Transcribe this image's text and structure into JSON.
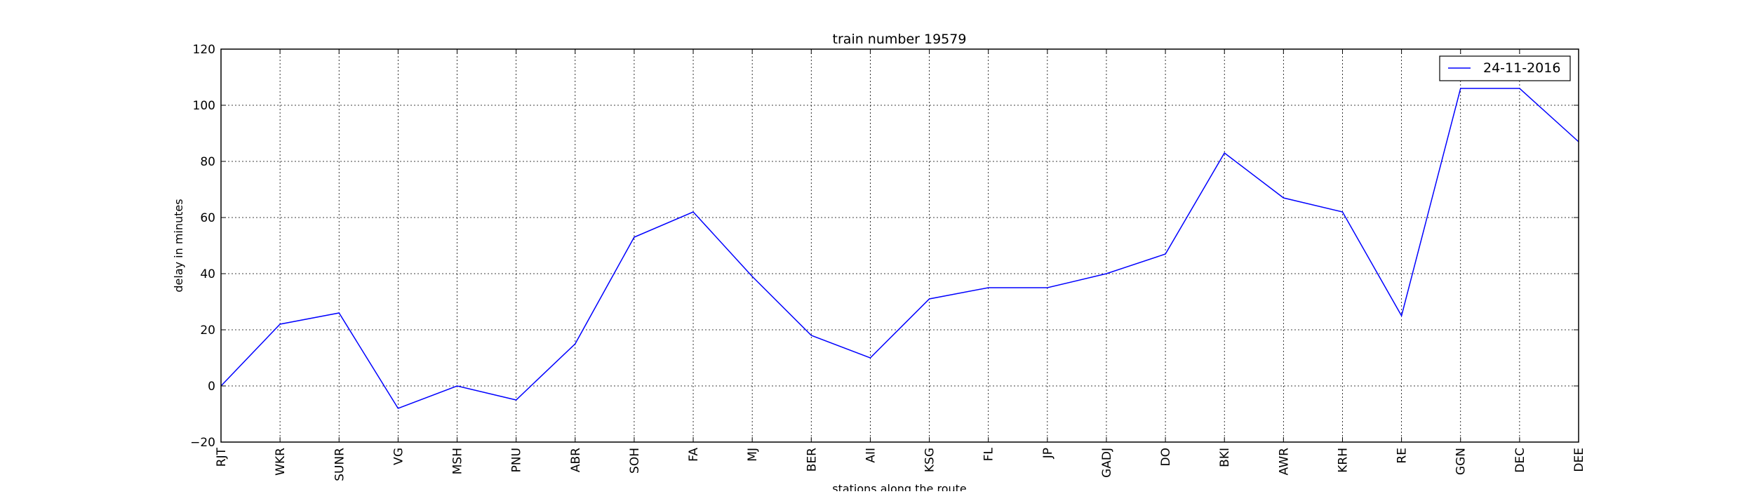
{
  "chart_data": {
    "type": "line",
    "title": "train number 19579",
    "xlabel": "stations along the route",
    "ylabel": "delay in minutes",
    "ylim": [
      -20,
      120
    ],
    "yticks": [
      -20,
      0,
      20,
      40,
      60,
      80,
      100,
      120
    ],
    "ytick_labels": [
      "−20",
      "0",
      "20",
      "40",
      "60",
      "80",
      "100",
      "120"
    ],
    "grid": true,
    "legend_position": "top-right",
    "categories": [
      "RJT",
      "WKR",
      "SUNR",
      "VG",
      "MSH",
      "PNU",
      "ABR",
      "SOH",
      "FA",
      "MJ",
      "BER",
      "AII",
      "KSG",
      "FL",
      "JP",
      "GADJ",
      "DO",
      "BKI",
      "AWR",
      "KRH",
      "RE",
      "GGN",
      "DEC",
      "DEE"
    ],
    "series": [
      {
        "name": "24-11-2016",
        "color": "#0000ff",
        "values": [
          0,
          22,
          26,
          -8,
          0,
          -5,
          15,
          53,
          62,
          39,
          18,
          10,
          31,
          35,
          35,
          40,
          47,
          83,
          67,
          62,
          25,
          106,
          106,
          87
        ]
      }
    ]
  }
}
